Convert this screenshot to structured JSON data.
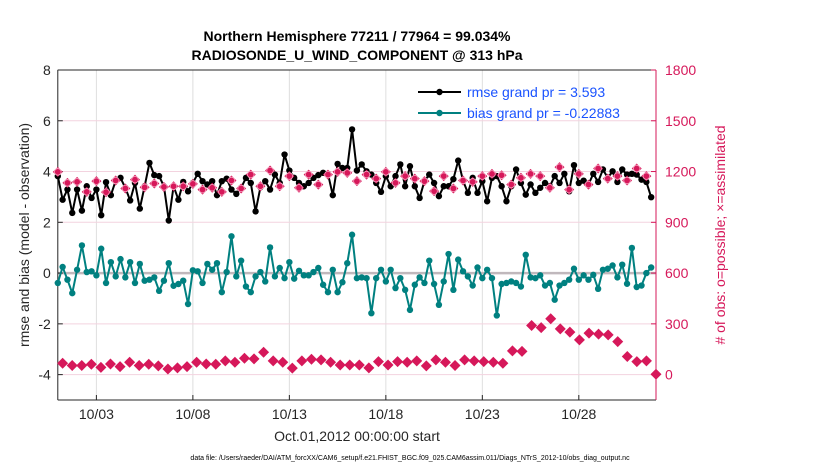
{
  "chart_data": {
    "type": "line",
    "title": [
      "Northern Hemisphere 77211 / 77964 = 99.034%",
      "RADIOSONDE_U_WIND_COMPONENT @ 313 hPa"
    ],
    "xlabel": "Oct.01,2012 00:00:00 start",
    "ylabel": "rmse and bias (model - observation)",
    "ylabel_right": "# of obs: o=possible; ×=assimilated",
    "footer": "data file: /Users/raeder/DAI/ATM_forcXX/CAM6_setup/f.e21.FHIST_BGC.f09_025.CAM6assim.011/Diags_NTrS_2012-10/obs_diag_output.nc",
    "x_unit": "day of October 2012",
    "xlim": [
      1,
      32
    ],
    "ylim": [
      -5,
      8
    ],
    "ylim_right": [
      -150,
      1800
    ],
    "x_ticks": [
      3,
      8,
      13,
      18,
      23,
      28
    ],
    "x_tick_labels": [
      "10/03",
      "10/08",
      "10/13",
      "10/18",
      "10/23",
      "10/28"
    ],
    "y_ticks": [
      -4,
      -2,
      0,
      2,
      4,
      6,
      8
    ],
    "y_tick_labels": [
      "-4",
      "-2",
      "0",
      "2",
      "4",
      "6",
      "8"
    ],
    "y_ticks_right": [
      0,
      300,
      600,
      900,
      1200,
      1500,
      1800
    ],
    "y_tick_labels_right": [
      "0",
      "300",
      "600",
      "900",
      "1200",
      "1500",
      "1800"
    ],
    "grid": true,
    "zero_line": 0,
    "legend_position": "top-right",
    "colors": {
      "rmse": "#000000",
      "bias": "#008080",
      "obs": "#d6185a",
      "legend_text": "#1a53ff",
      "zero": "#c0b8bc"
    },
    "series": [
      {
        "name": "rmse grand pr = 3.593",
        "key": "rmse",
        "axis": "left",
        "x_start": 1.0,
        "x_step": 0.25,
        "values": [
          3.82,
          2.89,
          3.29,
          2.37,
          3.29,
          2.46,
          3.42,
          2.96,
          3.29,
          2.28,
          3.58,
          3.07,
          3.64,
          3.75,
          3.36,
          2.86,
          3.55,
          2.54,
          3.42,
          4.34,
          3.86,
          3.82,
          3.42,
          2.07,
          3.42,
          2.89,
          3.59,
          3.22,
          3.55,
          3.91,
          3.62,
          3.49,
          3.62,
          3.07,
          3.62,
          3.72,
          3.29,
          3.12,
          3.36,
          3.75,
          3.55,
          2.43,
          3.38,
          3.62,
          3.29,
          3.88,
          3.55,
          4.67,
          4.04,
          3.75,
          3.55,
          3.42,
          3.55,
          3.75,
          3.86,
          3.95,
          3.91,
          3.07,
          4.3,
          4.14,
          4.14,
          5.66,
          4.04,
          4.28,
          4.01,
          3.88,
          3.55,
          3.2,
          3.82,
          3.42,
          3.82,
          4.28,
          3.42,
          4.21,
          3.42,
          2.96,
          3.62,
          3.88,
          3.55,
          3.03,
          3.42,
          3.42,
          3.7,
          4.43,
          3.64,
          3.16,
          3.75,
          3.16,
          3.62,
          2.83,
          3.75,
          3.82,
          3.42,
          2.83,
          3.42,
          4.08,
          3.55,
          3.09,
          3.49,
          3.16,
          3.36,
          3.55,
          3.42,
          3.82,
          3.55,
          3.91,
          3.22,
          4.25,
          3.55,
          3.64,
          3.49,
          3.91,
          3.59,
          4.08,
          3.75,
          4.01,
          3.59,
          4.08,
          3.88,
          3.91,
          3.88,
          3.68,
          3.59,
          2.99
        ]
      },
      {
        "name": "bias grand pr = -0.22883",
        "key": "bias",
        "axis": "left",
        "x_start": 1.0,
        "x_step": 0.25,
        "values": [
          -0.39,
          0.24,
          -0.26,
          -0.79,
          0.13,
          1.09,
          0.04,
          0.07,
          -0.09,
          0.96,
          -0.39,
          0.43,
          -0.13,
          0.55,
          -0.17,
          0.43,
          -0.39,
          0.36,
          -0.3,
          -0.26,
          -0.17,
          -0.7,
          -0.3,
          0.39,
          -0.5,
          -0.43,
          -0.3,
          -1.22,
          0.11,
          0.07,
          -0.39,
          0.36,
          0.13,
          0.39,
          -0.75,
          0.04,
          1.45,
          -0.13,
          0.49,
          -0.53,
          -0.75,
          -0.13,
          0.04,
          -0.33,
          1.01,
          -0.13,
          0.2,
          -0.2,
          0.43,
          -0.22,
          0.09,
          -0.09,
          -0.09,
          0.04,
          0.2,
          -0.46,
          -0.75,
          0.13,
          -0.75,
          -0.36,
          0.39,
          1.51,
          -0.2,
          -0.17,
          -0.2,
          -1.58,
          -0.2,
          0.13,
          -0.33,
          0.13,
          -0.59,
          -0.2,
          -0.66,
          -1.45,
          -0.46,
          -0.17,
          -0.39,
          0.49,
          -0.43,
          -1.25,
          -0.33,
          0.75,
          -0.66,
          0.53,
          0.07,
          -0.13,
          -0.49,
          0.22,
          -0.2,
          0.13,
          -0.2,
          -1.67,
          -0.43,
          -0.39,
          -0.33,
          -0.39,
          -0.53,
          0.72,
          -0.17,
          -0.2,
          -0.09,
          -0.49,
          -0.39,
          -1.05,
          -0.49,
          -0.39,
          -0.26,
          0.17,
          -0.26,
          -0.09,
          -0.26,
          -0.07,
          -0.62,
          0.13,
          0.17,
          0.3,
          -0.17,
          0.33,
          -0.42,
          0.99,
          -0.55,
          -0.49,
          0.0,
          0.22
        ]
      },
      {
        "name": "obs possible",
        "key": "possible",
        "axis": "right",
        "x_start": 1.0,
        "x_end": 31.5,
        "values": [
          1198,
          1133,
          1139,
          1080,
          1143,
          1078,
          1147,
          1100,
          1152,
          1107,
          1129,
          1109,
          1113,
          1113,
          1127,
          1093,
          1104,
          1080,
          1147,
          1100,
          1182,
          1113,
          1206,
          1113,
          1173,
          1104,
          1182,
          1123,
          1182,
          1198,
          1192,
          1143,
          1182,
          1158,
          1198,
          1133,
          1173,
          1158,
          1143,
          1084,
          1173,
          1100,
          1147,
          1139,
          1173,
          1186,
          1178,
          1123,
          1163,
          1186,
          1173,
          1104,
          1226,
          1093,
          1186,
          1123,
          1218,
          1158,
          1173,
          1147,
          1218,
          1173
        ]
      },
      {
        "name": "obs assimilated",
        "key": "assimilated",
        "axis": "right",
        "x_start": 1.25,
        "x_end": 32.0,
        "values": [
          67,
          54,
          54,
          61,
          43,
          63,
          47,
          73,
          54,
          61,
          52,
          33,
          40,
          47,
          73,
          63,
          61,
          81,
          73,
          97,
          93,
          132,
          81,
          73,
          38,
          81,
          91,
          87,
          73,
          57,
          57,
          57,
          40,
          77,
          57,
          77,
          73,
          81,
          52,
          87,
          73,
          54,
          87,
          81,
          77,
          73,
          67,
          140,
          137,
          290,
          278,
          330,
          270,
          251,
          205,
          245,
          239,
          235,
          195,
          107,
          77,
          81,
          2
        ]
      }
    ]
  }
}
